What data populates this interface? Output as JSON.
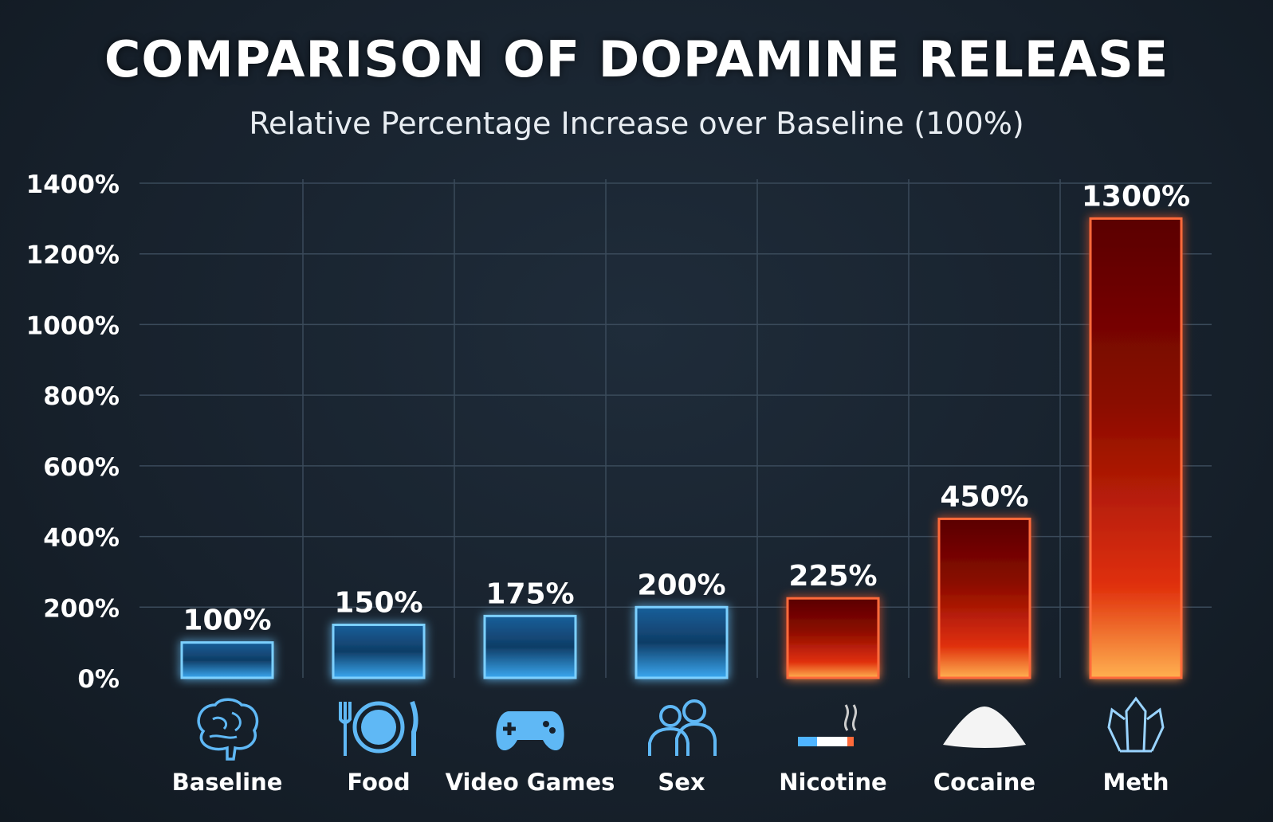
{
  "chart_data": {
    "type": "bar",
    "title": "COMPARISON OF DOPAMINE RELEASE",
    "subtitle": "Relative Percentage Increase over Baseline (100%)",
    "xlabel": "",
    "ylabel": "",
    "ylim": [
      0,
      1400
    ],
    "yticks": [
      0,
      200,
      400,
      600,
      800,
      1000,
      1200,
      1400
    ],
    "ytick_labels": [
      "0%",
      "200%",
      "400%",
      "600%",
      "800%",
      "1000%",
      "1200%",
      "1400%"
    ],
    "grid": true,
    "categories": [
      "Baseline",
      "Food",
      "Video Games",
      "Sex",
      "Nicotine",
      "Cocaine",
      "Meth"
    ],
    "values": [
      100,
      150,
      175,
      200,
      225,
      450,
      1300
    ],
    "data_labels": [
      "100%",
      "150%",
      "175%",
      "200%",
      "225%",
      "450%",
      "1300%"
    ],
    "icons": [
      "brain-icon",
      "plate-fork-knife-icon",
      "gamepad-icon",
      "couple-icon",
      "cigarette-icon",
      "powder-pile-icon",
      "crystal-icon"
    ],
    "bar_colors": [
      "#2f9be8",
      "#2f9be8",
      "#2f9be8",
      "#2f9be8",
      "#ff3a1a",
      "#ff3a1a",
      "#ff3a1a"
    ],
    "colors": {
      "blue": "#4fb4ff",
      "red": "#ff3a1a",
      "axis": "#ffffff",
      "grid": "#3a4a5a"
    }
  }
}
